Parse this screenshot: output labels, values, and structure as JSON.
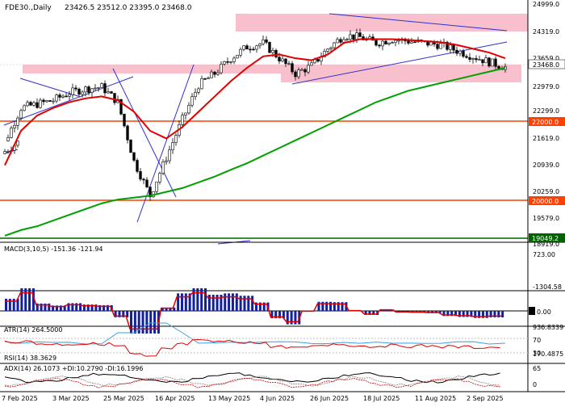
{
  "header": {
    "symbol": "FDE30.,Daily",
    "ohlc": "23426.5 23512.0 23395.0 23468.0"
  },
  "price_axis": {
    "ticks": [
      "24999.0",
      "24319.0",
      "23659.0",
      "22979.0",
      "22299.0",
      "21619.0",
      "20939.0",
      "20259.0",
      "19579.0",
      "18919.0"
    ],
    "current_price": "23468.0",
    "levels": [
      {
        "label": "22000.0",
        "value": 22000,
        "color": "#ff4000"
      },
      {
        "label": "20000.0",
        "value": 20000,
        "color": "#ff4000"
      },
      {
        "label": "19049.2",
        "value": 19049.2,
        "color": "#006400"
      }
    ],
    "range": [
      18880,
      25100
    ]
  },
  "macd": {
    "label": "MACD(3,10,5) -151.36 -121.94",
    "ticks": [
      "723.00",
      "0.00",
      "-1304.58"
    ]
  },
  "atr": {
    "label": "ATR(14) 264.5000",
    "ticks": [
      "936.8339",
      "170.4875"
    ]
  },
  "rsi": {
    "label": "RSI(14) 38.3629",
    "ticks": [
      "70",
      "30"
    ]
  },
  "adx": {
    "label": "ADX(14) 26.1073 +DI:10.2790 -DI:16.1996",
    "ticks": [
      "65",
      "0"
    ]
  },
  "x_axis": {
    "labels": [
      "7 Feb 2025",
      "3 Mar 2025",
      "25 Mar 2025",
      "16 Apr 2025",
      "13 May 2025",
      "4 Jun 2025",
      "26 Jun 2025",
      "18 Jul 2025",
      "11 Aug 2025",
      "2 Sep 2025"
    ]
  },
  "colors": {
    "up_body": "#ffffff",
    "down_body": "#000000",
    "ma_fast": "#e00000",
    "ma_slow": "#00a000",
    "zone": "#f7c0cc",
    "trendline": "#3030d0",
    "macd_hist": "#1020a0",
    "macd_signal": "#e00000",
    "atr_line": "#3aa0e0",
    "rsi_line": "#e00000",
    "adx_line": "#000000"
  },
  "chart_data": {
    "type": "candlestick",
    "x": [
      "2025-02-03",
      "2025-02-10",
      "2025-02-17",
      "2025-02-24",
      "2025-03-03",
      "2025-03-10",
      "2025-03-17",
      "2025-03-24",
      "2025-03-31",
      "2025-04-07",
      "2025-04-14",
      "2025-04-21",
      "2025-04-28",
      "2025-05-05",
      "2025-05-12",
      "2025-05-19",
      "2025-05-26",
      "2025-06-02",
      "2025-06-09",
      "2025-06-16",
      "2025-06-23",
      "2025-06-30",
      "2025-07-07",
      "2025-07-14",
      "2025-07-21",
      "2025-07-28",
      "2025-08-04",
      "2025-08-11",
      "2025-08-18",
      "2025-08-25",
      "2025-09-01",
      "2025-09-08"
    ],
    "close": [
      21500,
      22400,
      22500,
      22600,
      22800,
      22900,
      22950,
      22550,
      21000,
      20100,
      21100,
      22100,
      23000,
      23300,
      23700,
      24000,
      24100,
      23700,
      23300,
      23500,
      23950,
      24300,
      24250,
      24100,
      24200,
      24150,
      24100,
      24050,
      23900,
      23750,
      23600,
      23468
    ],
    "ma_fast": [
      20900,
      21800,
      22200,
      22400,
      22550,
      22650,
      22700,
      22600,
      22300,
      21800,
      21600,
      21900,
      22300,
      22700,
      23100,
      23450,
      23750,
      23800,
      23700,
      23650,
      23800,
      24100,
      24200,
      24200,
      24200,
      24180,
      24150,
      24120,
      24050,
      23950,
      23850,
      23700
    ],
    "ma_slow": [
      19050,
      19200,
      19300,
      19450,
      19600,
      19750,
      19900,
      20000,
      20050,
      20100,
      20200,
      20300,
      20450,
      20600,
      20780,
      20950,
      21150,
      21350,
      21550,
      21750,
      21950,
      22150,
      22350,
      22550,
      22700,
      22850,
      22950,
      23050,
      23150,
      23250,
      23350,
      23450
    ],
    "ylim": [
      18880,
      25100
    ]
  }
}
